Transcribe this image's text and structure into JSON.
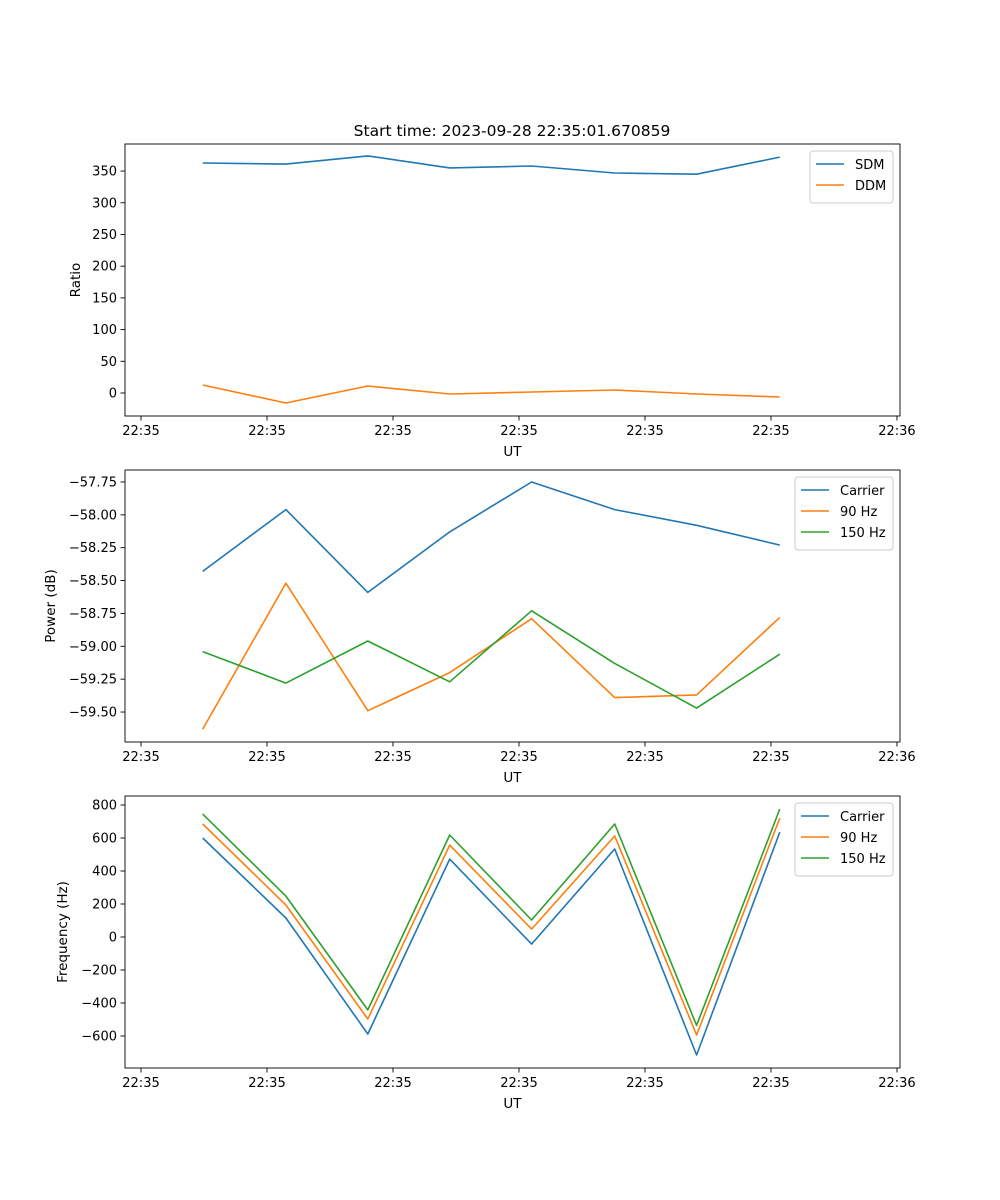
{
  "figure_title": "Start time: 2023-09-28 22:35:01.670859",
  "colors": {
    "blue": "#1f77b4",
    "orange": "#ff7f0e",
    "green": "#2ca02c"
  },
  "chart_data": [
    {
      "type": "line",
      "title": "Start time: 2023-09-28 22:35:01.670859",
      "xlabel": "UT",
      "ylabel": "Ratio",
      "x_unit": "seconds after 22:35:00",
      "x": [
        4.9,
        11.5,
        18.0,
        24.5,
        31.0,
        37.6,
        44.1,
        50.7
      ],
      "xlim": [
        -1.27,
        60.24
      ],
      "ylim": [
        -36.3,
        392.7
      ],
      "xticks": [
        0,
        10,
        20,
        30,
        40,
        50,
        60
      ],
      "xtick_labels": [
        "22:35",
        "22:35",
        "22:35",
        "22:35",
        "22:35",
        "22:35",
        "22:36"
      ],
      "yticks": [
        0,
        50,
        100,
        150,
        200,
        250,
        300,
        350
      ],
      "ytick_labels": [
        "0",
        "50",
        "100",
        "150",
        "200",
        "250",
        "300",
        "350"
      ],
      "legend_position": "upper right",
      "series": [
        {
          "name": "SDM",
          "color": "#1f77b4",
          "values": [
            362.7,
            361,
            374,
            355,
            358,
            347,
            345,
            372
          ]
        },
        {
          "name": "DDM",
          "color": "#ff7f0e",
          "values": [
            12.6,
            -15.8,
            11,
            -1.6,
            1.6,
            4.7,
            -1.6,
            -6.3
          ]
        }
      ]
    },
    {
      "type": "line",
      "title": "",
      "xlabel": "UT",
      "ylabel": "Power (dB)",
      "x_unit": "seconds after 22:35:00",
      "x": [
        4.9,
        11.5,
        18.0,
        24.5,
        31.0,
        37.6,
        44.1,
        50.7
      ],
      "xlim": [
        -1.27,
        60.24
      ],
      "ylim": [
        -59.728,
        -57.659
      ],
      "xticks": [
        0,
        10,
        20,
        30,
        40,
        50,
        60
      ],
      "xtick_labels": [
        "22:35",
        "22:35",
        "22:35",
        "22:35",
        "22:35",
        "22:35",
        "22:36"
      ],
      "yticks": [
        -59.5,
        -59.25,
        -59.0,
        -58.75,
        -58.5,
        -58.25,
        -58.0,
        -57.75
      ],
      "ytick_labels": [
        "−59.50",
        "−59.25",
        "−59.00",
        "−58.75",
        "−58.50",
        "−58.25",
        "−58.00",
        "−57.75"
      ],
      "legend_position": "upper right",
      "series": [
        {
          "name": "Carrier",
          "color": "#1f77b4",
          "values": [
            -58.43,
            -57.96,
            -58.59,
            -58.13,
            -57.75,
            -57.96,
            -58.08,
            -58.23
          ]
        },
        {
          "name": "90 Hz",
          "color": "#ff7f0e",
          "values": [
            -59.63,
            -58.52,
            -59.49,
            -59.2,
            -58.79,
            -59.39,
            -59.37,
            -58.78
          ]
        },
        {
          "name": "150 Hz",
          "color": "#2ca02c",
          "values": [
            -59.04,
            -59.28,
            -58.96,
            -59.27,
            -58.73,
            -59.13,
            -59.47,
            -59.06
          ]
        }
      ]
    },
    {
      "type": "line",
      "title": "",
      "xlabel": "UT",
      "ylabel": "Frequency (Hz)",
      "x_unit": "seconds after 22:35:00",
      "x": [
        4.9,
        11.5,
        18.0,
        24.5,
        31.0,
        37.6,
        44.1,
        50.7
      ],
      "xlim": [
        -1.27,
        60.24
      ],
      "ylim": [
        -794,
        854.5
      ],
      "xticks": [
        0,
        10,
        20,
        30,
        40,
        50,
        60
      ],
      "xtick_labels": [
        "22:35",
        "22:35",
        "22:35",
        "22:35",
        "22:35",
        "22:35",
        "22:36"
      ],
      "yticks": [
        -600,
        -400,
        -200,
        0,
        200,
        400,
        600,
        800
      ],
      "ytick_labels": [
        "−600",
        "−400",
        "−200",
        "0",
        "200",
        "400",
        "600",
        "800"
      ],
      "legend_position": "upper right",
      "series": [
        {
          "name": "Carrier",
          "color": "#1f77b4",
          "values": [
            600,
            115,
            -588,
            472,
            -43,
            533,
            -715,
            636
          ]
        },
        {
          "name": "90 Hz",
          "color": "#ff7f0e",
          "values": [
            685,
            194,
            -497,
            557,
            48,
            612,
            -594,
            721
          ]
        },
        {
          "name": "150 Hz",
          "color": "#2ca02c",
          "values": [
            745,
            248,
            -442,
            618,
            103,
            685,
            -536,
            776
          ]
        }
      ]
    }
  ]
}
